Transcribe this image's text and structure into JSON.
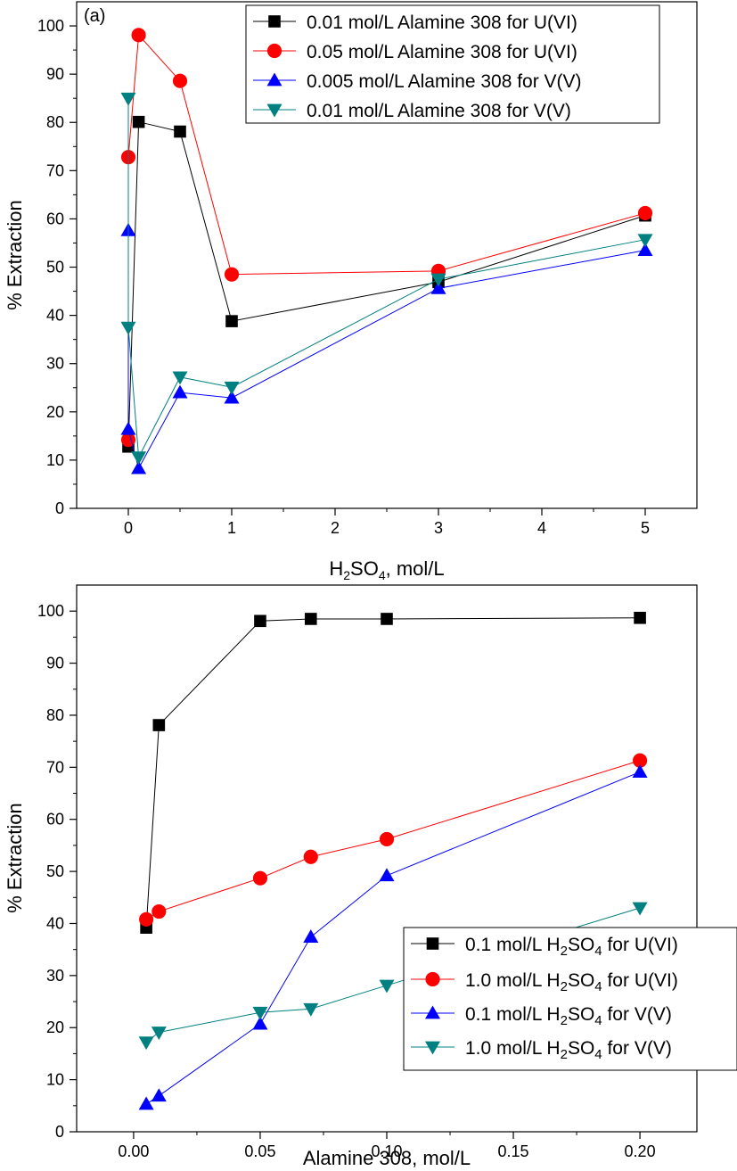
{
  "chart_data": [
    {
      "type": "line",
      "panel_label": "(a)",
      "xlabel": "H2SO4, mol/L",
      "xlabel_parts": {
        "a": "H",
        "sub1": "2",
        "b": "SO",
        "sub2": "4",
        "c": ", mol/L"
      },
      "ylabel": "% Extraction",
      "xlim": [
        -0.5,
        5.5
      ],
      "ylim": [
        0,
        105
      ],
      "xticks": [
        0,
        1,
        2,
        3,
        4,
        5
      ],
      "xtick_labels": [
        "0",
        "1",
        "2",
        "3",
        "4",
        "5"
      ],
      "yticks": [
        0,
        10,
        20,
        30,
        40,
        50,
        60,
        70,
        80,
        90,
        100
      ],
      "ytick_labels": [
        "0",
        "10",
        "20",
        "30",
        "40",
        "50",
        "60",
        "70",
        "80",
        "90",
        "100"
      ],
      "legend_position": "top-right",
      "series": [
        {
          "name": "0.01 mol/L Alamine 308 for U(VI)",
          "color": "#000000",
          "marker": "square",
          "x": [
            0,
            0.1,
            0.5,
            1,
            3,
            5
          ],
          "y": [
            12.8,
            80.1,
            78.1,
            38.8,
            46.9,
            60.7
          ]
        },
        {
          "name": "0.05 mol/L Alamine 308 for U(VI)",
          "color": "#ff0000",
          "marker": "circle",
          "x": [
            0,
            0,
            0.1,
            0.5,
            1,
            3,
            5
          ],
          "y": [
            14.2,
            72.8,
            98.1,
            88.6,
            48.5,
            49.2,
            61.2
          ]
        },
        {
          "name": "0.005 mol/L Alamine 308 for V(V)",
          "color": "#0000ff",
          "marker": "triangle-up",
          "x": [
            0,
            0,
            0.1,
            0.5,
            1,
            3,
            5
          ],
          "y": [
            57.6,
            16.4,
            8.3,
            24.0,
            22.9,
            45.6,
            53.5
          ]
        },
        {
          "name": "0.01 mol/L Alamine 308 for V(V)",
          "color": "#008080",
          "marker": "triangle-down",
          "x": [
            0,
            0,
            0.1,
            0.5,
            1,
            3,
            5
          ],
          "y": [
            85.0,
            37.5,
            10.6,
            27.2,
            25.1,
            47.5,
            55.7
          ]
        }
      ]
    },
    {
      "type": "line",
      "xlabel": "Alamine 308, mol/L",
      "ylabel": "% Extraction",
      "xlim": [
        -0.0225,
        0.2225
      ],
      "ylim": [
        0,
        105
      ],
      "xticks": [
        0,
        0.05,
        0.1,
        0.15,
        0.2
      ],
      "xtick_labels": [
        "0.00",
        "0.05",
        "0.10",
        "0.15",
        "0.20"
      ],
      "yticks": [
        0,
        10,
        20,
        30,
        40,
        50,
        60,
        70,
        80,
        90,
        100
      ],
      "ytick_labels": [
        "0",
        "10",
        "20",
        "30",
        "40",
        "50",
        "60",
        "70",
        "80",
        "90",
        "100"
      ],
      "legend_position": "bottom-right",
      "series": [
        {
          "name": "0.1 mol/L H2SO4 for U(VI)",
          "label_parts": {
            "a": "0.1 mol/L H",
            "sub1": "2",
            "b": "SO",
            "sub2": "4",
            "c": " for U(VI)"
          },
          "color": "#000000",
          "marker": "square",
          "x": [
            0.005,
            0.01,
            0.05,
            0.07,
            0.1,
            0.2
          ],
          "y": [
            39.2,
            78.1,
            98.1,
            98.5,
            98.5,
            98.7
          ]
        },
        {
          "name": "1.0 mol/L H2SO4 for U(VI)",
          "label_parts": {
            "a": "1.0 mol/L H",
            "sub1": "2",
            "b": "SO",
            "sub2": "4",
            "c": " for U(VI)"
          },
          "color": "#ff0000",
          "marker": "circle",
          "x": [
            0.005,
            0.01,
            0.05,
            0.07,
            0.1,
            0.2
          ],
          "y": [
            40.8,
            42.3,
            48.7,
            52.8,
            56.2,
            71.3
          ]
        },
        {
          "name": "0.1 mol/L H2SO4 for V(V)",
          "label_parts": {
            "a": "0.1 mol/L H",
            "sub1": "2",
            "b": "SO",
            "sub2": "4",
            "c": " for V(V)"
          },
          "color": "#0000ff",
          "marker": "triangle-up",
          "x": [
            0.005,
            0.01,
            0.05,
            0.07,
            0.1,
            0.2
          ],
          "y": [
            5.3,
            6.9,
            20.7,
            37.4,
            49.2,
            69.1
          ]
        },
        {
          "name": "1.0 mol/L H2SO4 for V(V)",
          "label_parts": {
            "a": "1.0 mol/L H",
            "sub1": "2",
            "b": "SO",
            "sub2": "4",
            "c": " for V(V)"
          },
          "color": "#008080",
          "marker": "triangle-down",
          "x": [
            0.005,
            0.01,
            0.05,
            0.07,
            0.1,
            0.2
          ],
          "y": [
            17.2,
            19.1,
            22.9,
            23.6,
            28.1,
            43.0
          ]
        }
      ]
    }
  ]
}
